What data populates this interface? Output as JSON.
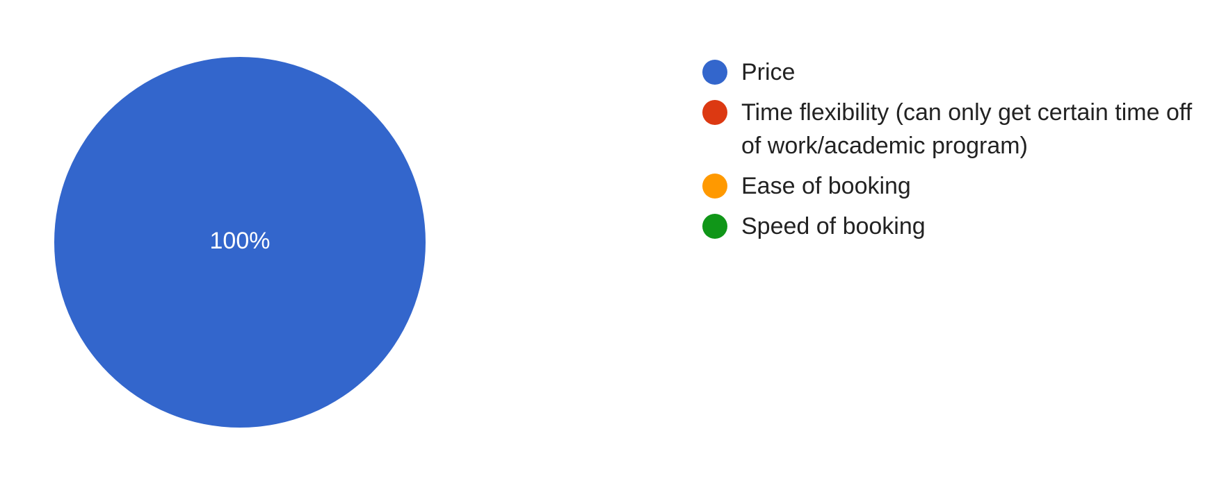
{
  "chart_data": {
    "type": "pie",
    "categories": [
      "Price",
      "Time flexibility (can only get certain time off of work/academic program)",
      "Ease of booking",
      "Speed of booking"
    ],
    "values": [
      100,
      0,
      0,
      0
    ],
    "colors": [
      "#3366cc",
      "#dc3912",
      "#ff9900",
      "#109618"
    ],
    "slice_labels": [
      "100%",
      "",
      "",
      ""
    ],
    "legend_position": "right"
  }
}
